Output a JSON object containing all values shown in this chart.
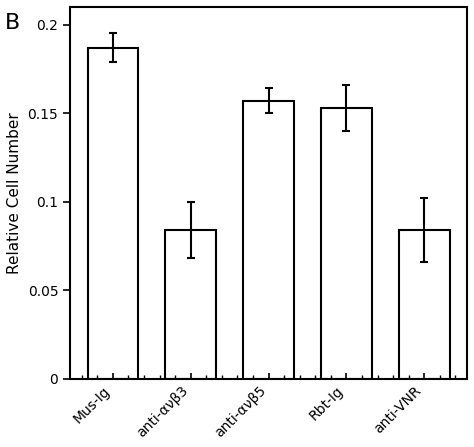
{
  "categories": [
    "Mus-Ig",
    "anti-ανβ3",
    "anti-ανβ5",
    "Rbt-Ig",
    "anti-VNR"
  ],
  "values": [
    0.187,
    0.084,
    0.157,
    0.153,
    0.084
  ],
  "errors": [
    0.008,
    0.016,
    0.007,
    0.013,
    0.018
  ],
  "bar_color": "#ffffff",
  "bar_edgecolor": "#000000",
  "ylabel": "Relative Cell Number",
  "ylim": [
    0,
    0.21
  ],
  "yticks": [
    0,
    0.05,
    0.1,
    0.15,
    0.2
  ],
  "ytick_labels": [
    "0",
    "0.05",
    "0.1",
    "0.15",
    "0.2"
  ],
  "panel_label": "B",
  "background_color": "#ffffff",
  "bar_width": 0.65,
  "capsize": 3,
  "linewidth": 1.5,
  "ylabel_fontsize": 11,
  "tick_fontsize": 10,
  "panel_label_fontsize": 16,
  "xtick_fontsize": 10
}
